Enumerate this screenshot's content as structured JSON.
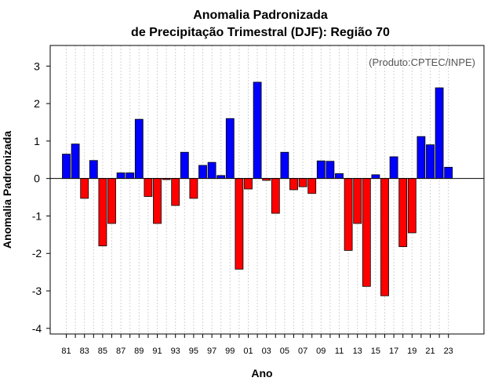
{
  "chart_data": {
    "type": "bar",
    "title": [
      "Anomalia Padronizada",
      "de Precipitação Trimestral (DJF): Região 70"
    ],
    "xlabel": "Ano",
    "ylabel": "Anomalia Padronizada",
    "credit": "(Produto:CPTEC/INPE)",
    "ylim": [
      -4.15,
      3.55
    ],
    "yticks": [
      "3",
      "2",
      "1",
      "0",
      "-1",
      "-2",
      "-3",
      "-4"
    ],
    "years": [
      "81",
      "82",
      "83",
      "84",
      "85",
      "86",
      "87",
      "88",
      "89",
      "90",
      "91",
      "92",
      "93",
      "94",
      "95",
      "96",
      "97",
      "98",
      "99",
      "00",
      "01",
      "02",
      "03",
      "04",
      "05",
      "06",
      "07",
      "08",
      "09",
      "10",
      "11",
      "12",
      "13",
      "14",
      "15",
      "16",
      "17",
      "18",
      "19",
      "20",
      "21",
      "22",
      "23"
    ],
    "xtick_labels": [
      "81",
      "83",
      "85",
      "87",
      "89",
      "91",
      "93",
      "95",
      "97",
      "99",
      "01",
      "03",
      "05",
      "07",
      "09",
      "11",
      "13",
      "15",
      "17",
      "19",
      "21",
      "23"
    ],
    "values": [
      0.65,
      0.92,
      -0.53,
      0.48,
      -1.8,
      -1.2,
      0.15,
      0.15,
      1.58,
      -0.48,
      -1.2,
      -0.03,
      -0.72,
      0.7,
      -0.53,
      0.35,
      0.43,
      0.08,
      1.6,
      -2.42,
      -0.28,
      2.57,
      -0.05,
      -0.93,
      0.7,
      -0.3,
      -0.22,
      -0.4,
      0.47,
      0.46,
      0.13,
      -1.92,
      -1.2,
      -2.88,
      0.1,
      -3.13,
      0.58,
      -1.82,
      -1.45,
      1.12,
      0.9,
      2.42,
      0.3
    ],
    "colors": {
      "positive": "#0000ff",
      "negative": "#ff0000",
      "edge": "#000000",
      "grid": "#d3d3d3"
    },
    "grid": true
  }
}
